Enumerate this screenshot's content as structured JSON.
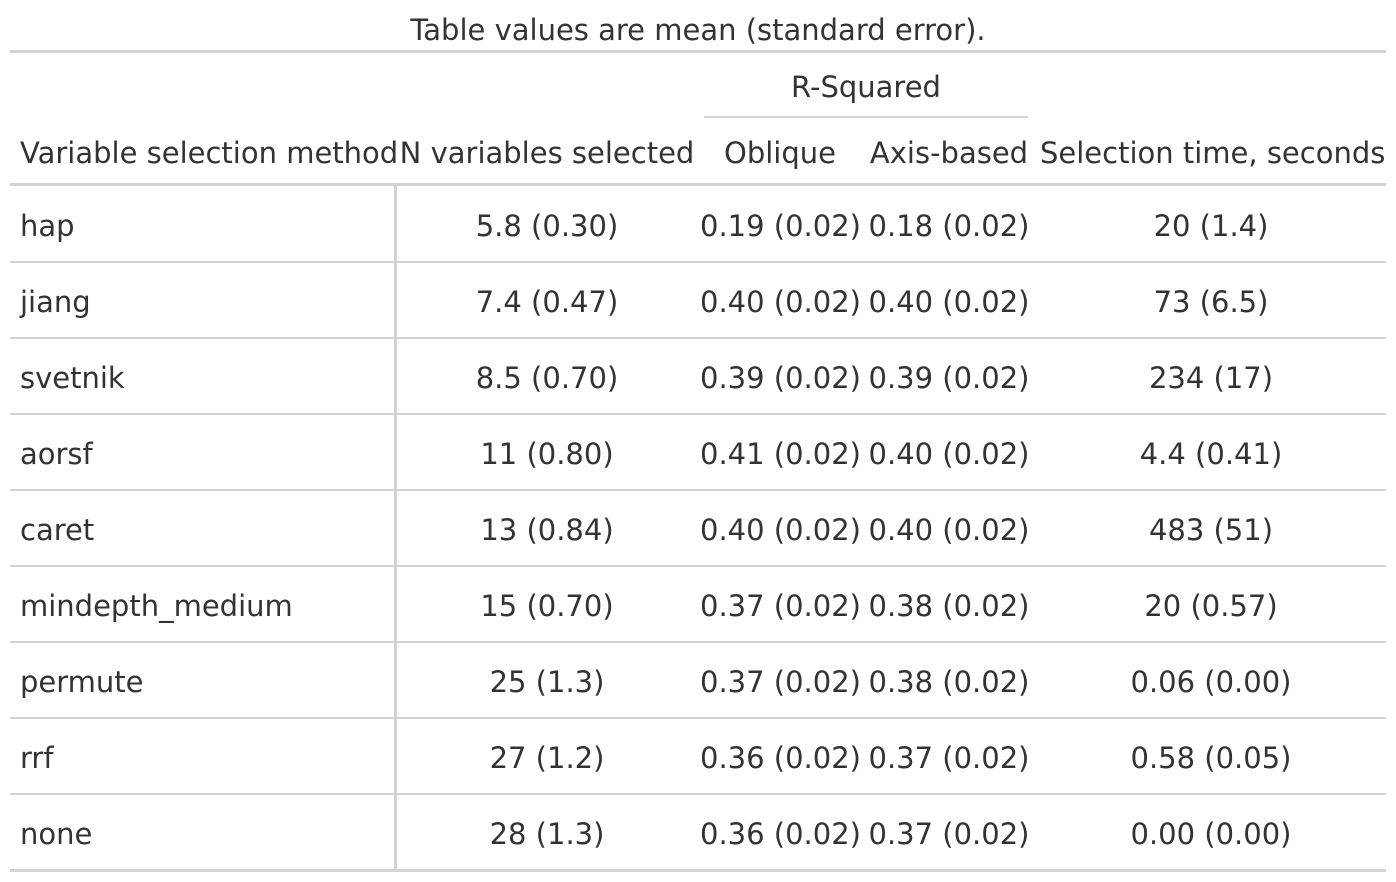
{
  "caption": "Table values are mean (standard error).",
  "spanner": "R-Squared",
  "headers": {
    "method": "Variable selection method",
    "n_vars": "N variables selected",
    "oblique": "Oblique",
    "axis": "Axis-based",
    "time": "Selection time, seconds"
  },
  "rows": [
    {
      "method": "hap",
      "n_vars": "5.8 (0.30)",
      "oblique": "0.19 (0.02)",
      "axis": "0.18 (0.02)",
      "time": "20 (1.4)"
    },
    {
      "method": "jiang",
      "n_vars": "7.4 (0.47)",
      "oblique": "0.40 (0.02)",
      "axis": "0.40 (0.02)",
      "time": "73 (6.5)"
    },
    {
      "method": "svetnik",
      "n_vars": "8.5 (0.70)",
      "oblique": "0.39 (0.02)",
      "axis": "0.39 (0.02)",
      "time": "234 (17)"
    },
    {
      "method": "aorsf",
      "n_vars": "11 (0.80)",
      "oblique": "0.41 (0.02)",
      "axis": "0.40 (0.02)",
      "time": "4.4 (0.41)"
    },
    {
      "method": "caret",
      "n_vars": "13 (0.84)",
      "oblique": "0.40 (0.02)",
      "axis": "0.40 (0.02)",
      "time": "483 (51)"
    },
    {
      "method": "mindepth_medium",
      "n_vars": "15 (0.70)",
      "oblique": "0.37 (0.02)",
      "axis": "0.38 (0.02)",
      "time": "20 (0.57)"
    },
    {
      "method": "permute",
      "n_vars": "25 (1.3)",
      "oblique": "0.37 (0.02)",
      "axis": "0.38 (0.02)",
      "time": "0.06 (0.00)"
    },
    {
      "method": "rrf",
      "n_vars": "27 (1.2)",
      "oblique": "0.36 (0.02)",
      "axis": "0.37 (0.02)",
      "time": "0.58 (0.05)"
    },
    {
      "method": "none",
      "n_vars": "28 (1.3)",
      "oblique": "0.36 (0.02)",
      "axis": "0.37 (0.02)",
      "time": "0.00 (0.00)"
    }
  ]
}
